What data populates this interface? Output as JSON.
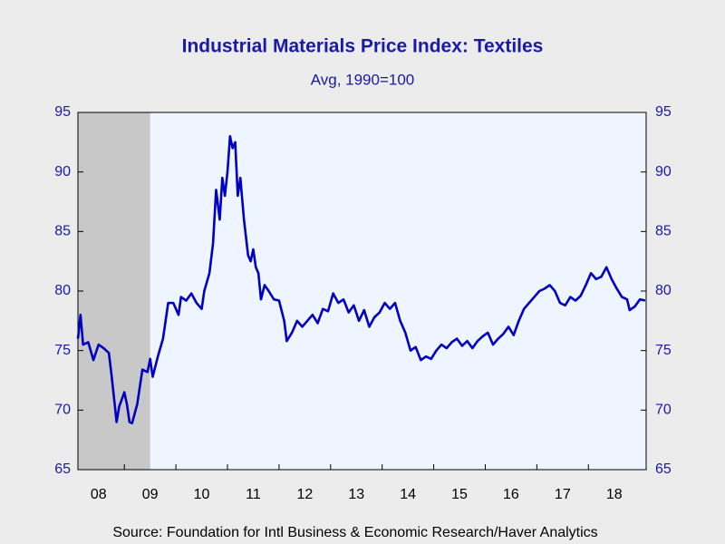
{
  "chart_data": {
    "type": "line",
    "title": "Industrial Materials Price Index: Textiles",
    "subtitle": "Avg, 1990=100",
    "source": "Source:  Foundation for Intl Business & Economic Research/Haver Analytics",
    "recession": [
      2007.92,
      2009.5
    ],
    "recession_color": "#c8c8c8",
    "xlim": [
      2008.1,
      2019.12
    ],
    "xticks": [
      {
        "value": 2008.5,
        "label": "08"
      },
      {
        "value": 2009.5,
        "label": "09"
      },
      {
        "value": 2010.5,
        "label": "10"
      },
      {
        "value": 2011.5,
        "label": "11"
      },
      {
        "value": 2012.5,
        "label": "12"
      },
      {
        "value": 2013.5,
        "label": "13"
      },
      {
        "value": 2014.5,
        "label": "14"
      },
      {
        "value": 2015.5,
        "label": "15"
      },
      {
        "value": 2016.5,
        "label": "16"
      },
      {
        "value": 2017.5,
        "label": "17"
      },
      {
        "value": 2018.5,
        "label": "18"
      }
    ],
    "ylim": [
      65,
      95
    ],
    "yticks": [
      65,
      70,
      75,
      80,
      85,
      90,
      95
    ],
    "x": [
      2008.1,
      2008.15,
      2008.2,
      2008.3,
      2008.4,
      2008.5,
      2008.6,
      2008.7,
      2008.75,
      2008.8,
      2008.85,
      2008.9,
      2009.0,
      2009.05,
      2009.1,
      2009.15,
      2009.25,
      2009.35,
      2009.45,
      2009.5,
      2009.55,
      2009.65,
      2009.75,
      2009.85,
      2009.95,
      2010.05,
      2010.1,
      2010.2,
      2010.3,
      2010.4,
      2010.5,
      2010.55,
      2010.65,
      2010.72,
      2010.78,
      2010.85,
      2010.9,
      2010.95,
      2011.0,
      2011.05,
      2011.1,
      2011.15,
      2011.2,
      2011.25,
      2011.32,
      2011.4,
      2011.45,
      2011.5,
      2011.55,
      2011.6,
      2011.65,
      2011.72,
      2011.8,
      2011.9,
      2012.0,
      2012.1,
      2012.15,
      2012.25,
      2012.35,
      2012.45,
      2012.55,
      2012.65,
      2012.75,
      2012.85,
      2012.95,
      2013.05,
      2013.15,
      2013.25,
      2013.35,
      2013.45,
      2013.55,
      2013.65,
      2013.75,
      2013.85,
      2013.95,
      2014.05,
      2014.15,
      2014.25,
      2014.35,
      2014.45,
      2014.55,
      2014.65,
      2014.75,
      2014.85,
      2014.95,
      2015.05,
      2015.15,
      2015.25,
      2015.35,
      2015.45,
      2015.55,
      2015.65,
      2015.75,
      2015.85,
      2015.95,
      2016.05,
      2016.15,
      2016.25,
      2016.35,
      2016.45,
      2016.55,
      2016.65,
      2016.75,
      2016.85,
      2016.95,
      2017.05,
      2017.15,
      2017.25,
      2017.35,
      2017.45,
      2017.55,
      2017.65,
      2017.75,
      2017.85,
      2017.95,
      2018.05,
      2018.15,
      2018.25,
      2018.35,
      2018.45,
      2018.55,
      2018.65,
      2018.75,
      2018.8,
      2018.9,
      2019.0,
      2019.1
    ],
    "series": [
      {
        "name": "Textiles",
        "color": "#0000c0",
        "values": [
          76,
          78,
          75.5,
          75.7,
          74.2,
          75.5,
          75.2,
          74.8,
          73,
          71,
          69,
          70.3,
          71.5,
          70.5,
          69,
          68.9,
          70.5,
          73.4,
          73.2,
          74.3,
          72.8,
          74.5,
          76,
          79,
          79,
          78,
          79.5,
          79.2,
          79.8,
          79,
          78.5,
          80,
          81.5,
          84,
          88.5,
          86,
          89.5,
          88,
          90,
          93,
          92,
          92.5,
          88,
          89.5,
          86,
          83,
          82.5,
          83.5,
          82,
          81.5,
          79.3,
          80.5,
          80,
          79.3,
          79.2,
          77.5,
          75.8,
          76.5,
          77.5,
          77,
          77.5,
          78,
          77.3,
          78.5,
          78.3,
          79.8,
          79,
          79.3,
          78.2,
          78.8,
          77.5,
          78.4,
          77,
          77.8,
          78.2,
          79,
          78.5,
          79,
          77.5,
          76.5,
          75,
          75.3,
          74.2,
          74.5,
          74.3,
          75,
          75.5,
          75.2,
          75.7,
          76,
          75.4,
          75.8,
          75.2,
          75.8,
          76.2,
          76.5,
          75.5,
          76,
          76.4,
          77,
          76.3,
          77.5,
          78.5,
          79,
          79.5,
          80,
          80.2,
          80.5,
          80,
          79,
          78.8,
          79.5,
          79.2,
          79.6,
          80.5,
          81.5,
          81,
          81.2,
          82,
          81,
          80.2,
          79.5,
          79.3,
          78.4,
          78.7,
          79.3,
          79.2
        ]
      }
    ]
  }
}
